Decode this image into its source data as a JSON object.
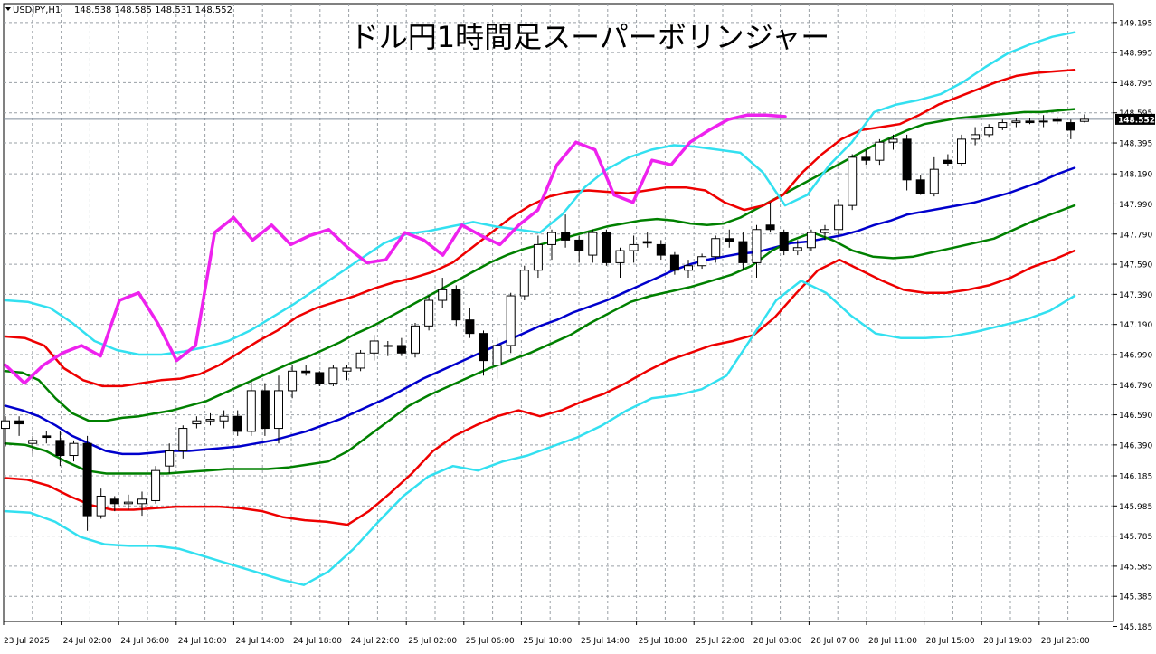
{
  "header": {
    "symbol_label": "USDJPY,H1",
    "ohlc": "148.538 148.585 148.531 148.552"
  },
  "title": "ドル円1時間足スーパーボリンジャー",
  "colors": {
    "background": "#ffffff",
    "grid": "#9aa0a6",
    "frame": "#000000",
    "candle_bull": "#ffffff",
    "candle_bear": "#000000",
    "sma": "#0000cc",
    "band_1sigma": "#008000",
    "band_2sigma": "#ee0000",
    "band_3sigma": "#33e0f0",
    "lagging_span": "#ee22ee",
    "price_line": "#7f8c9a",
    "price_tag_bg": "#000000",
    "price_tag_text": "#ffffff"
  },
  "chart_data": {
    "type": "candlestick",
    "title": "ドル円1時間足スーパーボリンジャー",
    "ylim": [
      145.1,
      149.25
    ],
    "grid": true,
    "y_ticks": [
      "149.195",
      "148.995",
      "148.795",
      "148.595",
      "148.395",
      "148.190",
      "147.990",
      "147.790",
      "147.590",
      "147.390",
      "147.190",
      "146.990",
      "146.790",
      "146.590",
      "146.390",
      "146.185",
      "145.985",
      "145.785",
      "145.585",
      "145.385",
      "145.185"
    ],
    "x_ticks": [
      "23 Jul 2025",
      "24 Jul 02:00",
      "24 Jul 06:00",
      "24 Jul 10:00",
      "24 Jul 14:00",
      "24 Jul 18:00",
      "24 Jul 22:00",
      "25 Jul 02:00",
      "25 Jul 06:00",
      "25 Jul 10:00",
      "25 Jul 14:00",
      "25 Jul 18:00",
      "25 Jul 22:00",
      "28 Jul 03:00",
      "28 Jul 07:00",
      "28 Jul 11:00",
      "28 Jul 15:00",
      "28 Jul 19:00",
      "28 Jul 23:00"
    ],
    "current_price": "148.552",
    "candles": [
      {
        "o": 146.5,
        "h": 146.58,
        "l": 146.38,
        "c": 146.55
      },
      {
        "o": 146.55,
        "h": 146.58,
        "l": 146.45,
        "c": 146.53
      },
      {
        "o": 146.4,
        "h": 146.45,
        "l": 146.33,
        "c": 146.42
      },
      {
        "o": 146.45,
        "h": 146.48,
        "l": 146.4,
        "c": 146.44
      },
      {
        "o": 146.42,
        "h": 146.48,
        "l": 146.25,
        "c": 146.32
      },
      {
        "o": 146.32,
        "h": 146.42,
        "l": 146.28,
        "c": 146.4
      },
      {
        "o": 146.4,
        "h": 146.45,
        "l": 145.82,
        "c": 145.92
      },
      {
        "o": 145.92,
        "h": 146.1,
        "l": 145.9,
        "c": 146.05
      },
      {
        "o": 146.03,
        "h": 146.05,
        "l": 145.95,
        "c": 146.0
      },
      {
        "o": 146.0,
        "h": 146.06,
        "l": 145.96,
        "c": 146.01
      },
      {
        "o": 146.0,
        "h": 146.08,
        "l": 145.92,
        "c": 146.03
      },
      {
        "o": 146.02,
        "h": 146.25,
        "l": 146.0,
        "c": 146.22
      },
      {
        "o": 146.25,
        "h": 146.4,
        "l": 146.2,
        "c": 146.35
      },
      {
        "o": 146.35,
        "h": 146.52,
        "l": 146.3,
        "c": 146.5
      },
      {
        "o": 146.53,
        "h": 146.58,
        "l": 146.5,
        "c": 146.55
      },
      {
        "o": 146.55,
        "h": 146.6,
        "l": 146.52,
        "c": 146.56
      },
      {
        "o": 146.55,
        "h": 146.62,
        "l": 146.5,
        "c": 146.58
      },
      {
        "o": 146.58,
        "h": 146.62,
        "l": 146.45,
        "c": 146.48
      },
      {
        "o": 146.48,
        "h": 146.82,
        "l": 146.45,
        "c": 146.75
      },
      {
        "o": 146.75,
        "h": 146.8,
        "l": 146.45,
        "c": 146.5
      },
      {
        "o": 146.5,
        "h": 146.85,
        "l": 146.4,
        "c": 146.75
      },
      {
        "o": 146.75,
        "h": 146.92,
        "l": 146.7,
        "c": 146.88
      },
      {
        "o": 146.88,
        "h": 146.92,
        "l": 146.85,
        "c": 146.87
      },
      {
        "o": 146.87,
        "h": 146.88,
        "l": 146.78,
        "c": 146.8
      },
      {
        "o": 146.8,
        "h": 146.92,
        "l": 146.78,
        "c": 146.9
      },
      {
        "o": 146.88,
        "h": 146.92,
        "l": 146.82,
        "c": 146.9
      },
      {
        "o": 146.9,
        "h": 147.02,
        "l": 146.88,
        "c": 147.0
      },
      {
        "o": 147.0,
        "h": 147.12,
        "l": 146.95,
        "c": 147.08
      },
      {
        "o": 147.05,
        "h": 147.08,
        "l": 146.98,
        "c": 147.05
      },
      {
        "o": 147.05,
        "h": 147.1,
        "l": 146.98,
        "c": 147.0
      },
      {
        "o": 147.0,
        "h": 147.2,
        "l": 146.97,
        "c": 147.18
      },
      {
        "o": 147.18,
        "h": 147.38,
        "l": 147.15,
        "c": 147.35
      },
      {
        "o": 147.35,
        "h": 147.5,
        "l": 147.3,
        "c": 147.42
      },
      {
        "o": 147.42,
        "h": 147.45,
        "l": 147.18,
        "c": 147.22
      },
      {
        "o": 147.22,
        "h": 147.3,
        "l": 147.1,
        "c": 147.13
      },
      {
        "o": 147.13,
        "h": 147.15,
        "l": 146.85,
        "c": 146.95
      },
      {
        "o": 146.92,
        "h": 147.1,
        "l": 146.83,
        "c": 147.05
      },
      {
        "o": 147.05,
        "h": 147.4,
        "l": 147.0,
        "c": 147.38
      },
      {
        "o": 147.38,
        "h": 147.58,
        "l": 147.35,
        "c": 147.55
      },
      {
        "o": 147.55,
        "h": 147.78,
        "l": 147.5,
        "c": 147.72
      },
      {
        "o": 147.72,
        "h": 147.82,
        "l": 147.62,
        "c": 147.8
      },
      {
        "o": 147.8,
        "h": 147.92,
        "l": 147.7,
        "c": 147.75
      },
      {
        "o": 147.75,
        "h": 147.78,
        "l": 147.6,
        "c": 147.68
      },
      {
        "o": 147.65,
        "h": 147.82,
        "l": 147.6,
        "c": 147.8
      },
      {
        "o": 147.8,
        "h": 147.82,
        "l": 147.58,
        "c": 147.6
      },
      {
        "o": 147.6,
        "h": 147.7,
        "l": 147.5,
        "c": 147.68
      },
      {
        "o": 147.68,
        "h": 147.78,
        "l": 147.6,
        "c": 147.72
      },
      {
        "o": 147.74,
        "h": 147.8,
        "l": 147.7,
        "c": 147.73
      },
      {
        "o": 147.72,
        "h": 147.75,
        "l": 147.62,
        "c": 147.65
      },
      {
        "o": 147.65,
        "h": 147.67,
        "l": 147.52,
        "c": 147.55
      },
      {
        "o": 147.55,
        "h": 147.62,
        "l": 147.5,
        "c": 147.58
      },
      {
        "o": 147.58,
        "h": 147.66,
        "l": 147.56,
        "c": 147.64
      },
      {
        "o": 147.64,
        "h": 147.78,
        "l": 147.6,
        "c": 147.76
      },
      {
        "o": 147.76,
        "h": 147.82,
        "l": 147.7,
        "c": 147.74
      },
      {
        "o": 147.74,
        "h": 147.8,
        "l": 147.55,
        "c": 147.6
      },
      {
        "o": 147.6,
        "h": 147.85,
        "l": 147.5,
        "c": 147.82
      },
      {
        "o": 147.85,
        "h": 148.0,
        "l": 147.8,
        "c": 147.82
      },
      {
        "o": 147.8,
        "h": 147.82,
        "l": 147.65,
        "c": 147.68
      },
      {
        "o": 147.68,
        "h": 147.75,
        "l": 147.65,
        "c": 147.7
      },
      {
        "o": 147.7,
        "h": 147.82,
        "l": 147.68,
        "c": 147.8
      },
      {
        "o": 147.8,
        "h": 147.85,
        "l": 147.75,
        "c": 147.82
      },
      {
        "o": 147.82,
        "h": 148.02,
        "l": 147.78,
        "c": 147.98
      },
      {
        "o": 147.98,
        "h": 148.32,
        "l": 147.95,
        "c": 148.3
      },
      {
        "o": 148.3,
        "h": 148.35,
        "l": 148.25,
        "c": 148.28
      },
      {
        "o": 148.28,
        "h": 148.42,
        "l": 148.25,
        "c": 148.4
      },
      {
        "o": 148.4,
        "h": 148.45,
        "l": 148.35,
        "c": 148.42
      },
      {
        "o": 148.42,
        "h": 148.45,
        "l": 148.08,
        "c": 148.15
      },
      {
        "o": 148.15,
        "h": 148.18,
        "l": 148.05,
        "c": 148.06
      },
      {
        "o": 148.06,
        "h": 148.3,
        "l": 148.04,
        "c": 148.22
      },
      {
        "o": 148.28,
        "h": 148.32,
        "l": 148.24,
        "c": 148.26
      },
      {
        "o": 148.26,
        "h": 148.45,
        "l": 148.24,
        "c": 148.42
      },
      {
        "o": 148.42,
        "h": 148.5,
        "l": 148.38,
        "c": 148.45
      },
      {
        "o": 148.45,
        "h": 148.52,
        "l": 148.43,
        "c": 148.5
      },
      {
        "o": 148.5,
        "h": 148.55,
        "l": 148.48,
        "c": 148.53
      },
      {
        "o": 148.53,
        "h": 148.56,
        "l": 148.5,
        "c": 148.54
      },
      {
        "o": 148.54,
        "h": 148.56,
        "l": 148.52,
        "c": 148.53
      },
      {
        "o": 148.54,
        "h": 148.58,
        "l": 148.5,
        "c": 148.54
      },
      {
        "o": 148.55,
        "h": 148.57,
        "l": 148.52,
        "c": 148.54
      },
      {
        "o": 148.53,
        "h": 148.55,
        "l": 148.42,
        "c": 148.48
      },
      {
        "o": 148.538,
        "h": 148.585,
        "l": 148.531,
        "c": 148.552
      }
    ],
    "series": [
      {
        "color": "#0000cc",
        "values": [
          146.65,
          146.62,
          146.58,
          146.52,
          146.45,
          146.4,
          146.35,
          146.33,
          146.33,
          146.34,
          146.35,
          146.35,
          146.36,
          146.37,
          146.38,
          146.4,
          146.42,
          146.45,
          146.48,
          146.52,
          146.56,
          146.61,
          146.66,
          146.71,
          146.77,
          146.83,
          146.88,
          146.93,
          146.98,
          147.03,
          147.08,
          147.13,
          147.18,
          147.22,
          147.27,
          147.31,
          147.35,
          147.4,
          147.45,
          147.5,
          147.55,
          147.59,
          147.62,
          147.64,
          147.66,
          147.67,
          147.7,
          147.73,
          147.74,
          147.76,
          147.78,
          147.81,
          147.85,
          147.88,
          147.92,
          147.94,
          147.96,
          147.98,
          148.0,
          148.03,
          148.06,
          148.1,
          148.14,
          148.19,
          148.23
        ]
      },
      {
        "color": "#008000",
        "values": [
          146.88,
          146.87,
          146.82,
          146.7,
          146.6,
          146.55,
          146.55,
          146.57,
          146.58,
          146.6,
          146.62,
          146.65,
          146.68,
          146.73,
          146.78,
          146.83,
          146.88,
          146.93,
          146.97,
          147.02,
          147.07,
          147.13,
          147.18,
          147.24,
          147.3,
          147.36,
          147.42,
          147.48,
          147.54,
          147.6,
          147.65,
          147.69,
          147.72,
          147.75,
          147.78,
          147.81,
          147.84,
          147.86,
          147.88,
          147.89,
          147.88,
          147.86,
          147.85,
          147.86,
          147.9,
          147.96,
          148.02,
          148.08,
          148.14,
          148.2,
          148.26,
          148.32,
          148.38,
          148.43,
          148.48,
          148.52,
          148.54,
          148.56,
          148.57,
          148.58,
          148.59,
          148.6,
          148.6,
          148.61,
          148.62
        ]
      },
      {
        "color": "#008000",
        "values": [
          146.4,
          146.39,
          146.35,
          146.28,
          146.22,
          146.2,
          146.2,
          146.2,
          146.2,
          146.21,
          146.22,
          146.23,
          146.23,
          146.23,
          146.24,
          146.26,
          146.28,
          146.35,
          146.45,
          146.55,
          146.65,
          146.72,
          146.78,
          146.84,
          146.9,
          146.95,
          147.0,
          147.06,
          147.12,
          147.2,
          147.27,
          147.34,
          147.38,
          147.41,
          147.44,
          147.48,
          147.52,
          147.58,
          147.68,
          147.75,
          147.8,
          147.75,
          147.68,
          147.64,
          147.63,
          147.64,
          147.67,
          147.7,
          147.73,
          147.76,
          147.82,
          147.88,
          147.93,
          147.98
        ]
      },
      {
        "color": "#ee0000",
        "values": [
          147.11,
          147.1,
          147.05,
          146.9,
          146.82,
          146.78,
          146.78,
          146.8,
          146.82,
          146.83,
          146.86,
          146.92,
          147.0,
          147.08,
          147.15,
          147.24,
          147.3,
          147.34,
          147.38,
          147.43,
          147.47,
          147.5,
          147.54,
          147.6,
          147.7,
          147.8,
          147.9,
          147.98,
          148.04,
          148.07,
          148.08,
          148.07,
          148.06,
          148.08,
          148.1,
          148.1,
          148.08,
          148.0,
          147.95,
          147.98,
          148.05,
          148.2,
          148.32,
          148.42,
          148.48,
          148.5,
          148.52,
          148.58,
          148.65,
          148.7,
          148.75,
          148.8,
          148.84,
          148.86,
          148.87,
          148.88
        ]
      },
      {
        "color": "#ee0000",
        "values": [
          146.17,
          146.16,
          146.12,
          146.05,
          145.99,
          145.96,
          145.96,
          145.97,
          145.98,
          145.98,
          145.98,
          145.97,
          145.95,
          145.91,
          145.89,
          145.88,
          145.86,
          145.95,
          146.07,
          146.2,
          146.35,
          146.45,
          146.52,
          146.58,
          146.62,
          146.58,
          146.62,
          146.68,
          146.73,
          146.8,
          146.88,
          146.95,
          147.0,
          147.05,
          147.08,
          147.12,
          147.24,
          147.4,
          147.55,
          147.62,
          147.55,
          147.48,
          147.42,
          147.4,
          147.4,
          147.42,
          147.45,
          147.5,
          147.57,
          147.62,
          147.68
        ]
      },
      {
        "color": "#33e0f0",
        "values": [
          147.35,
          147.34,
          147.3,
          147.2,
          147.08,
          147.02,
          146.99,
          146.99,
          147.01,
          147.04,
          147.08,
          147.15,
          147.24,
          147.33,
          147.43,
          147.53,
          147.63,
          147.73,
          147.79,
          147.81,
          147.84,
          147.87,
          147.84,
          147.82,
          147.8,
          147.92,
          148.1,
          148.22,
          148.3,
          148.35,
          148.38,
          148.37,
          148.35,
          148.33,
          148.2,
          147.98,
          148.05,
          148.25,
          148.4,
          148.6,
          148.65,
          148.68,
          148.72,
          148.8,
          148.9,
          148.99,
          149.05,
          149.1,
          149.13
        ]
      },
      {
        "color": "#33e0f0",
        "values": [
          145.95,
          145.94,
          145.88,
          145.78,
          145.73,
          145.72,
          145.72,
          145.7,
          145.65,
          145.6,
          145.55,
          145.5,
          145.46,
          145.55,
          145.7,
          145.88,
          146.05,
          146.18,
          146.25,
          146.22,
          146.28,
          146.32,
          146.38,
          146.44,
          146.52,
          146.62,
          146.7,
          146.72,
          146.76,
          146.85,
          147.1,
          147.35,
          147.48,
          147.4,
          147.25,
          147.13,
          147.1,
          147.1,
          147.11,
          147.14,
          147.18,
          147.22,
          147.28,
          147.38
        ]
      },
      {
        "color": "#ee22ee",
        "values": [
          146.92,
          146.8,
          146.92,
          147.0,
          147.05,
          146.98,
          147.35,
          147.4,
          147.2,
          146.95,
          147.05,
          147.8,
          147.9,
          147.75,
          147.85,
          147.72,
          147.78,
          147.82,
          147.7,
          147.6,
          147.62,
          147.8,
          147.75,
          147.65,
          147.85,
          147.78,
          147.72,
          147.85,
          147.95,
          148.25,
          148.4,
          148.35,
          148.05,
          148.0,
          148.28,
          148.25,
          148.4,
          148.48,
          148.55,
          148.58,
          148.58,
          148.57
        ]
      }
    ]
  }
}
